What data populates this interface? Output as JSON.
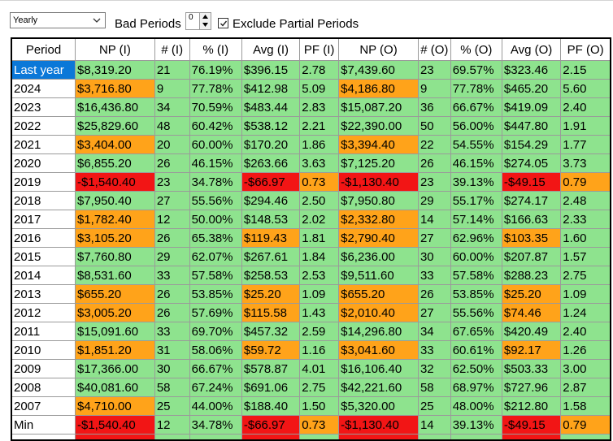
{
  "toolbar": {
    "period_select": {
      "value": "Yearly"
    },
    "bad_periods": {
      "label": "Bad Periods",
      "value": "0"
    },
    "exclude_partial": {
      "label": "Exclude Partial Periods",
      "checked": true
    }
  },
  "table": {
    "columns": [
      "Period",
      "NP (I)",
      "# (I)",
      "% (I)",
      "Avg (I)",
      "PF (I)",
      "NP (O)",
      "# (O)",
      "% (O)",
      "Avg (O)",
      "PF (O)"
    ],
    "rows": [
      {
        "label": "Last year",
        "selected": true,
        "cells": [
          "$8,319.20",
          "21",
          "76.19%",
          "$396.15",
          "2.78",
          "$7,439.60",
          "23",
          "69.57%",
          "$323.46",
          "2.15"
        ],
        "hl": [
          "g",
          "g",
          "g",
          "g",
          "g",
          "g",
          "g",
          "g",
          "g",
          "g"
        ]
      },
      {
        "label": "2024",
        "cells": [
          "$3,716.80",
          "9",
          "77.78%",
          "$412.98",
          "5.09",
          "$4,186.80",
          "9",
          "77.78%",
          "$465.20",
          "5.60"
        ],
        "hl": [
          "o",
          "g",
          "g",
          "g",
          "g",
          "o",
          "g",
          "g",
          "g",
          "g"
        ]
      },
      {
        "label": "2023",
        "cells": [
          "$16,436.80",
          "34",
          "70.59%",
          "$483.44",
          "2.83",
          "$15,087.20",
          "36",
          "66.67%",
          "$419.09",
          "2.40"
        ],
        "hl": [
          "g",
          "g",
          "g",
          "g",
          "g",
          "g",
          "g",
          "g",
          "g",
          "g"
        ]
      },
      {
        "label": "2022",
        "cells": [
          "$25,829.60",
          "48",
          "60.42%",
          "$538.12",
          "2.21",
          "$22,390.00",
          "50",
          "56.00%",
          "$447.80",
          "1.91"
        ],
        "hl": [
          "g",
          "g",
          "g",
          "g",
          "g",
          "g",
          "g",
          "g",
          "g",
          "g"
        ]
      },
      {
        "label": "2021",
        "cells": [
          "$3,404.00",
          "20",
          "60.00%",
          "$170.20",
          "1.86",
          "$3,394.40",
          "22",
          "54.55%",
          "$154.29",
          "1.77"
        ],
        "hl": [
          "o",
          "g",
          "g",
          "g",
          "g",
          "o",
          "g",
          "g",
          "g",
          "g"
        ]
      },
      {
        "label": "2020",
        "cells": [
          "$6,855.20",
          "26",
          "46.15%",
          "$263.66",
          "3.63",
          "$7,125.20",
          "26",
          "46.15%",
          "$274.05",
          "3.73"
        ],
        "hl": [
          "g",
          "g",
          "g",
          "g",
          "g",
          "g",
          "g",
          "g",
          "g",
          "g"
        ]
      },
      {
        "label": "2019",
        "cells": [
          "-$1,540.40",
          "23",
          "34.78%",
          "-$66.97",
          "0.73",
          "-$1,130.40",
          "23",
          "39.13%",
          "-$49.15",
          "0.79"
        ],
        "hl": [
          "r",
          "g",
          "g",
          "r",
          "o",
          "r",
          "g",
          "g",
          "r",
          "o"
        ]
      },
      {
        "label": "2018",
        "cells": [
          "$7,950.40",
          "27",
          "55.56%",
          "$294.46",
          "2.50",
          "$7,950.80",
          "29",
          "55.17%",
          "$274.17",
          "2.48"
        ],
        "hl": [
          "g",
          "g",
          "g",
          "g",
          "g",
          "g",
          "g",
          "g",
          "g",
          "g"
        ]
      },
      {
        "label": "2017",
        "cells": [
          "$1,782.40",
          "12",
          "50.00%",
          "$148.53",
          "2.02",
          "$2,332.80",
          "14",
          "57.14%",
          "$166.63",
          "2.33"
        ],
        "hl": [
          "o",
          "g",
          "g",
          "g",
          "g",
          "o",
          "g",
          "g",
          "g",
          "g"
        ]
      },
      {
        "label": "2016",
        "cells": [
          "$3,105.20",
          "26",
          "65.38%",
          "$119.43",
          "1.81",
          "$2,790.40",
          "27",
          "62.96%",
          "$103.35",
          "1.60"
        ],
        "hl": [
          "o",
          "g",
          "g",
          "o",
          "g",
          "o",
          "g",
          "g",
          "o",
          "g"
        ]
      },
      {
        "label": "2015",
        "cells": [
          "$7,760.80",
          "29",
          "62.07%",
          "$267.61",
          "1.84",
          "$6,236.00",
          "30",
          "60.00%",
          "$207.87",
          "1.57"
        ],
        "hl": [
          "g",
          "g",
          "g",
          "g",
          "g",
          "g",
          "g",
          "g",
          "g",
          "g"
        ]
      },
      {
        "label": "2014",
        "cells": [
          "$8,531.60",
          "33",
          "57.58%",
          "$258.53",
          "2.53",
          "$9,511.60",
          "33",
          "57.58%",
          "$288.23",
          "2.75"
        ],
        "hl": [
          "g",
          "g",
          "g",
          "g",
          "g",
          "g",
          "g",
          "g",
          "g",
          "g"
        ]
      },
      {
        "label": "2013",
        "cells": [
          "$655.20",
          "26",
          "53.85%",
          "$25.20",
          "1.09",
          "$655.20",
          "26",
          "53.85%",
          "$25.20",
          "1.09"
        ],
        "hl": [
          "o",
          "g",
          "g",
          "o",
          "g",
          "o",
          "g",
          "g",
          "o",
          "g"
        ]
      },
      {
        "label": "2012",
        "cells": [
          "$3,005.20",
          "26",
          "57.69%",
          "$115.58",
          "1.43",
          "$2,010.40",
          "27",
          "55.56%",
          "$74.46",
          "1.24"
        ],
        "hl": [
          "o",
          "g",
          "g",
          "o",
          "g",
          "o",
          "g",
          "g",
          "o",
          "g"
        ]
      },
      {
        "label": "2011",
        "cells": [
          "$15,091.60",
          "33",
          "69.70%",
          "$457.32",
          "2.59",
          "$14,296.80",
          "34",
          "67.65%",
          "$420.49",
          "2.40"
        ],
        "hl": [
          "g",
          "g",
          "g",
          "g",
          "g",
          "g",
          "g",
          "g",
          "g",
          "g"
        ]
      },
      {
        "label": "2010",
        "cells": [
          "$1,851.20",
          "31",
          "58.06%",
          "$59.72",
          "1.16",
          "$3,041.60",
          "33",
          "60.61%",
          "$92.17",
          "1.26"
        ],
        "hl": [
          "o",
          "g",
          "g",
          "o",
          "g",
          "o",
          "g",
          "g",
          "o",
          "g"
        ]
      },
      {
        "label": "2009",
        "cells": [
          "$17,366.00",
          "30",
          "66.67%",
          "$578.87",
          "4.01",
          "$16,106.40",
          "32",
          "62.50%",
          "$503.33",
          "3.00"
        ],
        "hl": [
          "g",
          "g",
          "g",
          "g",
          "g",
          "g",
          "g",
          "g",
          "g",
          "g"
        ]
      },
      {
        "label": "2008",
        "cells": [
          "$40,081.60",
          "58",
          "67.24%",
          "$691.06",
          "2.75",
          "$42,221.60",
          "58",
          "68.97%",
          "$727.96",
          "2.87"
        ],
        "hl": [
          "g",
          "g",
          "g",
          "g",
          "g",
          "g",
          "g",
          "g",
          "g",
          "g"
        ]
      },
      {
        "label": "2007",
        "cells": [
          "$4,710.00",
          "25",
          "44.00%",
          "$188.40",
          "1.50",
          "$5,320.00",
          "25",
          "48.00%",
          "$212.80",
          "1.58"
        ],
        "hl": [
          "o",
          "g",
          "g",
          "g",
          "g",
          "g",
          "g",
          "g",
          "g",
          "g"
        ]
      },
      {
        "label": "Min",
        "cells": [
          "-$1,540.40",
          "12",
          "34.78%",
          "-$66.97",
          "0.73",
          "-$1,130.40",
          "14",
          "39.13%",
          "-$49.15",
          "0.79"
        ],
        "hl": [
          "r",
          "g",
          "g",
          "r",
          "o",
          "r",
          "g",
          "g",
          "r",
          "o"
        ]
      }
    ]
  },
  "colors": {
    "good": "#8ee38e",
    "warn": "#ffa31a",
    "bad": "#f21515",
    "selected": "#0b78d8"
  },
  "icons": [
    "chevron-down-icon",
    "arrow-up-icon",
    "arrow-down-icon",
    "checkmark-icon"
  ]
}
